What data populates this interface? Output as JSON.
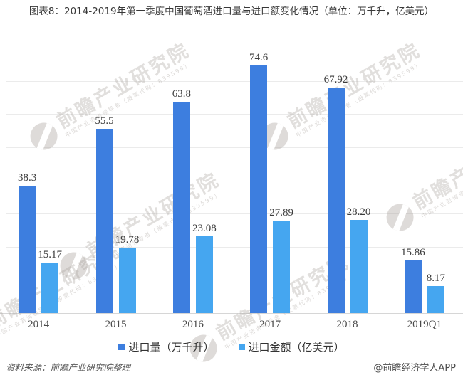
{
  "title": "图表8：2014-2019年第一季度中国葡萄酒进口量与进口额变化情况（单位：万千升，亿美元）",
  "chart_data": {
    "type": "bar",
    "categories": [
      "2014",
      "2015",
      "2016",
      "2017",
      "2018",
      "2019Q1"
    ],
    "series": [
      {
        "name": "进口量（万千升）",
        "color": "#3D7EDF",
        "values": [
          38.3,
          55.5,
          63.8,
          74.6,
          67.92,
          15.86
        ],
        "labels": [
          "38.3",
          "55.5",
          "63.8",
          "74.6",
          "67.92",
          "15.86"
        ]
      },
      {
        "name": "进口金额（亿美元）",
        "color": "#45A6F0",
        "values": [
          15.17,
          19.78,
          23.08,
          27.89,
          28.2,
          8.17
        ],
        "labels": [
          "15.17",
          "19.78",
          "23.08",
          "27.89",
          "28.20",
          "8.17"
        ]
      }
    ],
    "title": "图表8：2014-2019年第一季度中国葡萄酒进口量与进口额变化情况（单位：万千升，亿美元）",
    "xlabel": "",
    "ylabel": "",
    "ylim": [
      0,
      80
    ],
    "grid_interval": 10,
    "grid": true,
    "y_axis_labels_visible": false,
    "legend_position": "bottom",
    "bar_value_labels_visible": true
  },
  "watermark": {
    "text": "前瞻产业研究院",
    "subtext": "中国产业咨询领导者（股票代码：839599）"
  },
  "footer": {
    "source": "资料来源：前瞻产业研究院整理",
    "credit": "@前瞻经济学人APP"
  }
}
